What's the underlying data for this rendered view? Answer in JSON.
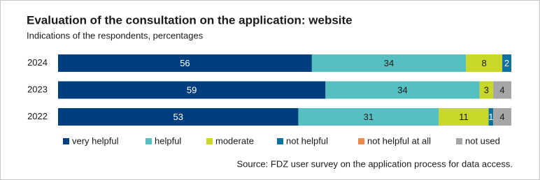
{
  "chart_data": {
    "type": "stacked-bar-horizontal",
    "title": "Evaluation of the consultation on the application: website",
    "subtitle": "Indications of the respondents, percentages",
    "source": "Source: FDZ user survey on the application process for data access.",
    "categories": [
      "2024",
      "2023",
      "2022"
    ],
    "xlim": [
      0,
      100
    ],
    "series": [
      {
        "name": "very helpful",
        "color": "#003f7f",
        "values": [
          56,
          59,
          53
        ]
      },
      {
        "name": "helpful",
        "color": "#56bfc1",
        "values": [
          34,
          34,
          31
        ]
      },
      {
        "name": "moderate",
        "color": "#c9d62a",
        "values": [
          8,
          3,
          11
        ]
      },
      {
        "name": "not helpful",
        "color": "#0e72a0",
        "values": [
          2,
          0,
          1
        ]
      },
      {
        "name": "not helpful at all",
        "color": "#ef8a4c",
        "values": [
          0,
          0,
          0
        ]
      },
      {
        "name": "not used",
        "color": "#a6a6a6",
        "values": [
          0,
          4,
          4
        ]
      }
    ]
  }
}
